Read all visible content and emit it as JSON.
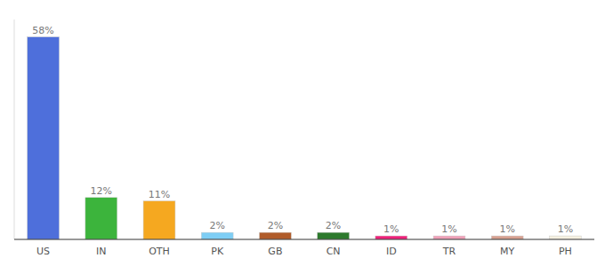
{
  "chart_data": {
    "type": "bar",
    "categories": [
      "US",
      "IN",
      "OTH",
      "PK",
      "GB",
      "CN",
      "ID",
      "TR",
      "MY",
      "PH"
    ],
    "values": [
      58,
      12,
      11,
      2,
      2,
      2,
      1,
      1,
      1,
      1
    ],
    "value_labels": [
      "58%",
      "12%",
      "11%",
      "2%",
      "2%",
      "2%",
      "1%",
      "1%",
      "1%",
      "1%"
    ],
    "colors": [
      "#4e6fdb",
      "#3cb43c",
      "#f5a820",
      "#7ecef5",
      "#b05c2a",
      "#2d7a2d",
      "#f0207a",
      "#f0a0b8",
      "#d8a090",
      "#f5f0e0"
    ],
    "ylim": [
      0,
      63
    ],
    "data_labels": true,
    "tick_labels": "x",
    "grid": false
  }
}
